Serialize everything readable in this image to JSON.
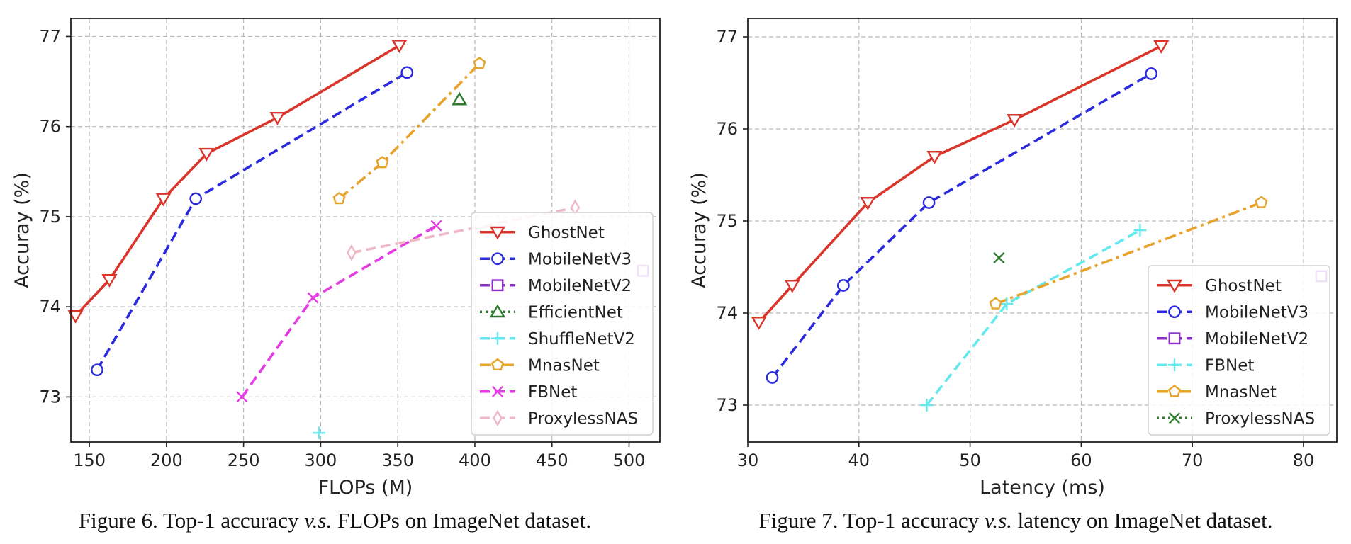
{
  "chart_data": [
    {
      "type": "line",
      "title": "",
      "xlabel": "FLOPs (M)",
      "ylabel": "Accuray (%)",
      "xlim": [
        138,
        520
      ],
      "ylim": [
        72.5,
        77.2
      ],
      "xticks": [
        150,
        200,
        250,
        300,
        350,
        400,
        450,
        500
      ],
      "yticks": [
        73,
        74,
        75,
        76,
        77
      ],
      "grid": true,
      "legend_position": "lower-right",
      "series": [
        {
          "name": "GhostNet",
          "color": "#d9352a",
          "marker": "tri-down",
          "style": "solid",
          "x": [
            141,
            163,
            198,
            226,
            272,
            351
          ],
          "y": [
            73.9,
            74.3,
            75.2,
            75.7,
            76.1,
            76.9
          ]
        },
        {
          "name": "MobileNetV3",
          "color": "#2b2bdd",
          "marker": "circle",
          "style": "dashed",
          "x": [
            155,
            219,
            356
          ],
          "y": [
            73.3,
            75.2,
            76.6
          ]
        },
        {
          "name": "MobileNetV2",
          "color": "#8b2fc9",
          "marker": "square",
          "style": "dashed",
          "x": [
            509
          ],
          "y": [
            74.4
          ]
        },
        {
          "name": "EfficientNet",
          "color": "#2e7d2e",
          "marker": "tri-up",
          "style": "dotted",
          "x": [
            390
          ],
          "y": [
            76.3
          ]
        },
        {
          "name": "ShuffleNetV2",
          "color": "#66e8ee",
          "marker": "plus",
          "style": "dashed",
          "x": [
            299
          ],
          "y": [
            72.6
          ]
        },
        {
          "name": "MnasNet",
          "color": "#e7a32c",
          "marker": "pentagon",
          "style": "dashdot",
          "x": [
            312,
            340,
            403
          ],
          "y": [
            75.2,
            75.6,
            76.7
          ]
        },
        {
          "name": "FBNet",
          "color": "#e43de4",
          "marker": "x",
          "style": "dashed",
          "x": [
            249,
            295,
            375
          ],
          "y": [
            73.0,
            74.1,
            74.9
          ]
        },
        {
          "name": "ProxylessNAS",
          "color": "#f0b8c6",
          "marker": "diamond",
          "style": "dashed",
          "x": [
            320,
            465
          ],
          "y": [
            74.6,
            75.1
          ]
        }
      ],
      "caption": {
        "prefix": "Figure 6. Top-1 accuracy ",
        "emph": "v.s.",
        "suffix": " FLOPs on ImageNet dataset."
      }
    },
    {
      "type": "line",
      "title": "",
      "xlabel": "Latency (ms)",
      "ylabel": "Accuray (%)",
      "xlim": [
        30,
        83
      ],
      "ylim": [
        72.6,
        77.2
      ],
      "xticks": [
        30,
        40,
        50,
        60,
        70,
        80
      ],
      "yticks": [
        73,
        74,
        75,
        76,
        77
      ],
      "grid": true,
      "legend_position": "lower-right",
      "series": [
        {
          "name": "GhostNet",
          "color": "#d9352a",
          "marker": "tri-down",
          "style": "solid",
          "x": [
            31.0,
            34.0,
            40.8,
            46.8,
            54.0,
            67.2
          ],
          "y": [
            73.9,
            74.3,
            75.2,
            75.7,
            76.1,
            76.9
          ]
        },
        {
          "name": "MobileNetV3",
          "color": "#2b2bdd",
          "marker": "circle",
          "style": "dashed",
          "x": [
            32.2,
            38.6,
            46.3,
            66.3
          ],
          "y": [
            73.3,
            74.3,
            75.2,
            76.6
          ]
        },
        {
          "name": "MobileNetV2",
          "color": "#8b2fc9",
          "marker": "square",
          "style": "dashed",
          "x": [
            81.6
          ],
          "y": [
            74.4
          ]
        },
        {
          "name": "FBNet",
          "color": "#66e8ee",
          "marker": "plus",
          "style": "dashed",
          "x": [
            46.1,
            53.3,
            65.3
          ],
          "y": [
            73.0,
            74.1,
            74.9
          ]
        },
        {
          "name": "MnasNet",
          "color": "#e7a32c",
          "marker": "pentagon",
          "style": "dashdot",
          "x": [
            52.3,
            76.2
          ],
          "y": [
            74.1,
            75.2
          ]
        },
        {
          "name": "ProxylessNAS",
          "color": "#2e7d2e",
          "marker": "x",
          "style": "dotted",
          "x": [
            52.6
          ],
          "y": [
            74.6
          ]
        }
      ],
      "caption": {
        "prefix": "Figure 7. Top-1 accuracy ",
        "emph": "v.s.",
        "suffix": " latency on ImageNet dataset."
      }
    }
  ]
}
